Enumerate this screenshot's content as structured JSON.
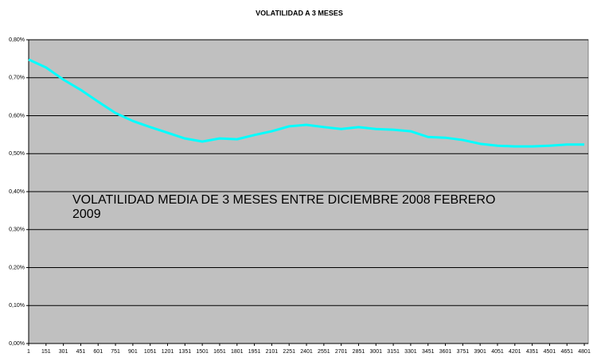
{
  "chart_data": {
    "type": "line",
    "title": "VOLATILIDAD A 3 MESES",
    "annotation": "VOLATILIDAD MEDIA DE 3 MESES ENTRE DICIEMBRE 2008 FEBRERO 2009",
    "x": [
      1,
      151,
      301,
      451,
      601,
      751,
      901,
      1051,
      1201,
      1351,
      1501,
      1651,
      1801,
      1951,
      2101,
      2251,
      2401,
      2551,
      2701,
      2851,
      3001,
      3151,
      3301,
      3451,
      3601,
      3751,
      3901,
      4051,
      4201,
      4351,
      4501,
      4651,
      4801
    ],
    "series": [
      {
        "color": "#00ffff",
        "values": [
          0.748,
          0.727,
          0.695,
          0.668,
          0.637,
          0.607,
          0.586,
          0.57,
          0.555,
          0.54,
          0.532,
          0.54,
          0.538,
          0.549,
          0.559,
          0.572,
          0.576,
          0.57,
          0.565,
          0.57,
          0.565,
          0.563,
          0.559,
          0.544,
          0.542,
          0.536,
          0.526,
          0.521,
          0.519,
          0.519,
          0.521,
          0.524,
          0.524
        ]
      }
    ],
    "xlim": [
      1,
      4835
    ],
    "xticks": [
      1,
      151,
      301,
      451,
      601,
      751,
      901,
      1051,
      1201,
      1351,
      1501,
      1651,
      1801,
      1951,
      2101,
      2251,
      2401,
      2551,
      2701,
      2851,
      3001,
      3151,
      3301,
      3451,
      3601,
      3751,
      3901,
      4051,
      4201,
      4351,
      4501,
      4651,
      4801
    ],
    "ylim": [
      0,
      0.8
    ],
    "yticks": [
      {
        "value": 0,
        "label": "0,00%"
      },
      {
        "value": 0.1,
        "label": "0,10%"
      },
      {
        "value": 0.2,
        "label": "0,20%"
      },
      {
        "value": 0.3,
        "label": "0,30%"
      },
      {
        "value": 0.4,
        "label": "0,40%"
      },
      {
        "value": 0.5,
        "label": "0,50%"
      },
      {
        "value": 0.6,
        "label": "0,60%"
      },
      {
        "value": 0.7,
        "label": "0,70%"
      },
      {
        "value": 0.8,
        "label": "0,80%"
      }
    ],
    "grid": true,
    "plot_background": "#c0c0c0"
  }
}
